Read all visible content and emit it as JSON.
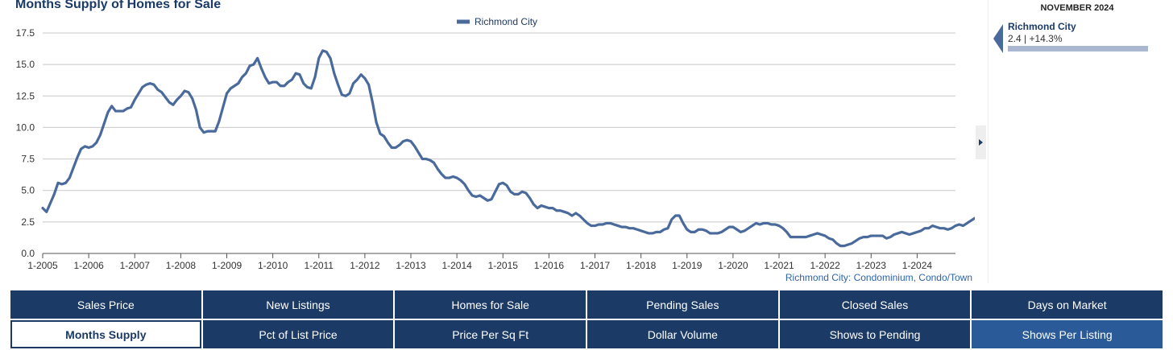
{
  "page": {
    "title": "Months Supply of Homes for Sale"
  },
  "chart_data": {
    "type": "line",
    "title": "Months Supply of Homes for Sale",
    "xlabel": "",
    "ylabel": "",
    "ylim": [
      0,
      17.5
    ],
    "yticks": [
      "0.0",
      "2.5",
      "5.0",
      "7.5",
      "10.0",
      "12.5",
      "15.0",
      "17.5"
    ],
    "yticks_values": [
      0,
      2.5,
      5,
      7.5,
      10,
      12.5,
      15,
      17.5
    ],
    "xticks": [
      "1-2005",
      "1-2006",
      "1-2007",
      "1-2008",
      "1-2009",
      "1-2010",
      "1-2011",
      "1-2012",
      "1-2013",
      "1-2014",
      "1-2015",
      "1-2016",
      "1-2017",
      "1-2018",
      "1-2019",
      "1-2020",
      "1-2021",
      "1-2022",
      "1-2023",
      "1-2024"
    ],
    "xlim": [
      "1-2005",
      "11-2024"
    ],
    "grid": true,
    "legend_position": "top-center",
    "series": [
      {
        "name": "Richmond City",
        "color": "#4a6a9c",
        "start": "1-2005",
        "frequency": "monthly",
        "values": [
          3.6,
          3.3,
          4.0,
          4.7,
          5.6,
          5.5,
          5.6,
          6.0,
          6.8,
          7.6,
          8.3,
          8.5,
          8.4,
          8.5,
          8.8,
          9.4,
          10.3,
          11.2,
          11.7,
          11.3,
          11.3,
          11.3,
          11.5,
          11.6,
          12.2,
          12.7,
          13.2,
          13.4,
          13.5,
          13.4,
          13.0,
          12.8,
          12.4,
          12.0,
          11.8,
          12.2,
          12.5,
          12.9,
          12.8,
          12.3,
          11.4,
          10.0,
          9.6,
          9.7,
          9.7,
          9.7,
          10.5,
          11.6,
          12.7,
          13.1,
          13.3,
          13.5,
          14.0,
          14.3,
          14.9,
          15.0,
          15.5,
          14.7,
          14.0,
          13.5,
          13.6,
          13.6,
          13.3,
          13.3,
          13.6,
          13.8,
          14.3,
          14.2,
          13.5,
          13.2,
          13.1,
          14.0,
          15.5,
          16.1,
          16.0,
          15.5,
          14.3,
          13.4,
          12.6,
          12.5,
          12.7,
          13.5,
          13.8,
          14.2,
          13.9,
          13.4,
          12.0,
          10.4,
          9.5,
          9.3,
          8.8,
          8.4,
          8.4,
          8.6,
          8.9,
          9.0,
          8.9,
          8.5,
          8.0,
          7.5,
          7.5,
          7.4,
          7.2,
          6.7,
          6.3,
          6.0,
          6.0,
          6.1,
          6.0,
          5.8,
          5.5,
          5.0,
          4.6,
          4.5,
          4.6,
          4.4,
          4.2,
          4.3,
          4.9,
          5.5,
          5.6,
          5.4,
          4.9,
          4.7,
          4.7,
          4.9,
          4.8,
          4.4,
          3.9,
          3.6,
          3.8,
          3.7,
          3.6,
          3.6,
          3.4,
          3.4,
          3.3,
          3.2,
          3.0,
          3.2,
          3.0,
          2.7,
          2.4,
          2.2,
          2.2,
          2.3,
          2.3,
          2.4,
          2.4,
          2.3,
          2.2,
          2.1,
          2.1,
          2.0,
          2.0,
          1.9,
          1.8,
          1.7,
          1.6,
          1.6,
          1.7,
          1.7,
          1.9,
          2.0,
          2.7,
          3.0,
          3.0,
          2.4,
          1.9,
          1.7,
          1.7,
          1.9,
          1.9,
          1.8,
          1.6,
          1.6,
          1.6,
          1.7,
          1.9,
          2.1,
          2.1,
          1.9,
          1.7,
          1.8,
          2.0,
          2.2,
          2.4,
          2.3,
          2.4,
          2.4,
          2.3,
          2.3,
          2.2,
          2.0,
          1.7,
          1.3,
          1.3,
          1.3,
          1.3,
          1.3,
          1.4,
          1.5,
          1.6,
          1.5,
          1.4,
          1.2,
          1.1,
          0.8,
          0.6,
          0.6,
          0.7,
          0.8,
          1.0,
          1.2,
          1.3,
          1.3,
          1.4,
          1.4,
          1.4,
          1.4,
          1.2,
          1.3,
          1.5,
          1.6,
          1.7,
          1.6,
          1.5,
          1.6,
          1.7,
          1.8,
          2.0,
          2.0,
          2.2,
          2.1,
          2.0,
          2.0,
          1.9,
          2.0,
          2.2,
          2.3,
          2.2,
          2.4,
          2.6,
          2.8,
          2.8,
          2.4
        ]
      }
    ]
  },
  "source_note": "Richmond City: Condominium, Condo/Town",
  "side_panel": {
    "period": "NOVEMBER 2024",
    "name": "Richmond City",
    "stats": "2.4 | +14.3%",
    "bar_fraction": 1.0
  },
  "tabs": [
    {
      "label": "Sales Price",
      "state": "normal"
    },
    {
      "label": "New Listings",
      "state": "normal"
    },
    {
      "label": "Homes for Sale",
      "state": "normal"
    },
    {
      "label": "Pending Sales",
      "state": "normal"
    },
    {
      "label": "Closed Sales",
      "state": "normal"
    },
    {
      "label": "Days on Market",
      "state": "normal"
    },
    {
      "label": "Months Supply",
      "state": "active"
    },
    {
      "label": "Pct of List Price",
      "state": "normal"
    },
    {
      "label": "Price Per Sq Ft",
      "state": "normal"
    },
    {
      "label": "Dollar Volume",
      "state": "normal"
    },
    {
      "label": "Shows to Pending",
      "state": "normal"
    },
    {
      "label": "Shows Per Listing",
      "state": "highlight"
    }
  ]
}
